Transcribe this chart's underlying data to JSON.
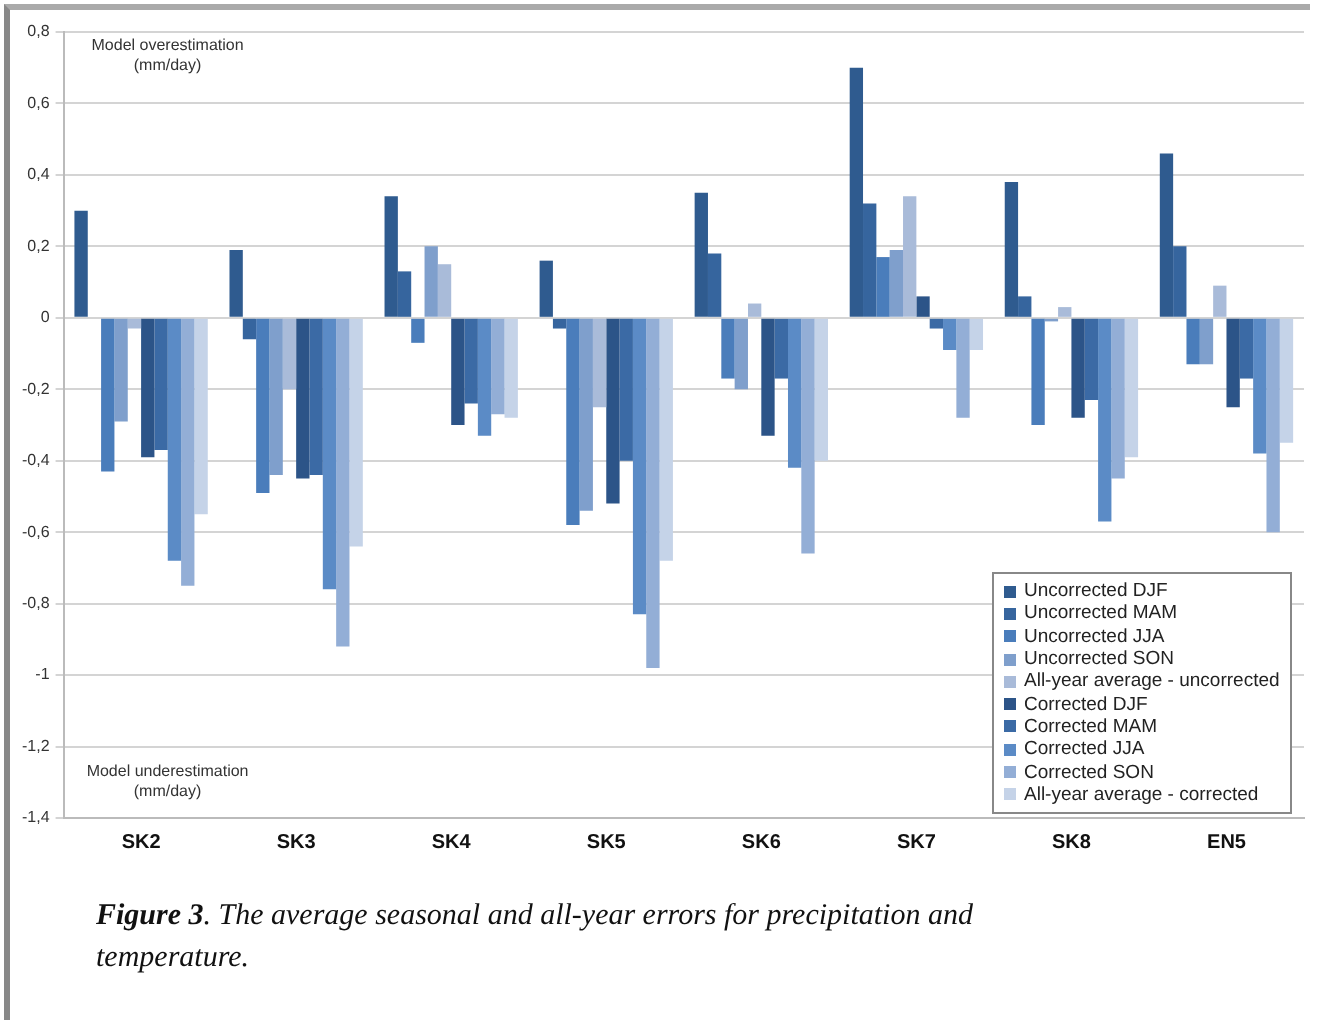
{
  "chart_data": {
    "type": "bar",
    "categories": [
      "SK2",
      "SK3",
      "SK4",
      "SK5",
      "SK6",
      "SK7",
      "SK8",
      "EN5"
    ],
    "series": [
      {
        "name": "Uncorrected DJF",
        "color": "#2f5b8f",
        "values": [
          0.3,
          0.19,
          0.34,
          0.16,
          0.35,
          0.7,
          0.38,
          0.46
        ]
      },
      {
        "name": "Uncorrected MAM",
        "color": "#36659e",
        "values": [
          0,
          -0.06,
          0.13,
          -0.03,
          0.18,
          0.32,
          0.06,
          0.2
        ]
      },
      {
        "name": "Uncorrected JJA",
        "color": "#4a7dbb",
        "values": [
          -0.43,
          -0.49,
          -0.07,
          -0.58,
          -0.17,
          0.17,
          -0.3,
          -0.13
        ]
      },
      {
        "name": "Uncorrected SON",
        "color": "#7f9fcc",
        "values": [
          -0.29,
          -0.44,
          0.2,
          -0.54,
          -0.2,
          0.19,
          -0.01,
          -0.13
        ]
      },
      {
        "name": "All-year average - uncorrected",
        "color": "#a9bbd9",
        "values": [
          -0.03,
          -0.2,
          0.15,
          -0.25,
          0.04,
          0.34,
          0.03,
          0.09
        ]
      },
      {
        "name": "Corrected DJF",
        "color": "#2c5488",
        "values": [
          -0.39,
          -0.45,
          -0.3,
          -0.52,
          -0.33,
          0.06,
          -0.28,
          -0.25
        ]
      },
      {
        "name": "Corrected MAM",
        "color": "#3b6aa5",
        "values": [
          -0.37,
          -0.44,
          -0.24,
          -0.4,
          -0.17,
          -0.03,
          -0.23,
          -0.17
        ]
      },
      {
        "name": "Corrected JJA",
        "color": "#5b8bc6",
        "values": [
          -0.68,
          -0.76,
          -0.33,
          -0.83,
          -0.42,
          -0.09,
          -0.57,
          -0.38
        ]
      },
      {
        "name": "Corrected SON",
        "color": "#93aed6",
        "values": [
          -0.75,
          -0.92,
          -0.27,
          -0.98,
          -0.66,
          -0.28,
          -0.45,
          -0.6
        ]
      },
      {
        "name": "All-year average - corrected",
        "color": "#c5d3e8",
        "values": [
          -0.55,
          -0.64,
          -0.28,
          -0.68,
          -0.4,
          -0.09,
          -0.39,
          -0.35
        ]
      }
    ],
    "ylim": [
      -1.4,
      0.8
    ],
    "yticks": [
      {
        "value": 0.8,
        "label": "0,8"
      },
      {
        "value": 0.6,
        "label": "0,6"
      },
      {
        "value": 0.4,
        "label": "0,4"
      },
      {
        "value": 0.2,
        "label": "0,2"
      },
      0,
      {
        "value": -0.2,
        "label": "-0,2"
      },
      {
        "value": -0.4,
        "label": "-0,4"
      },
      {
        "value": -0.6,
        "label": "-0,6"
      },
      {
        "value": -0.8,
        "label": "-0,8"
      },
      -1,
      {
        "value": -1.2,
        "label": "-1,2"
      },
      {
        "value": -1.4,
        "label": "-1,4"
      }
    ],
    "grid": "y",
    "legend": "bottom right",
    "annotations": [
      "Model overestimation (mm/day)",
      "Model underestimation (mm/day)",
      "Figure 3. The average seasonal and all-year errors for precipitation and temperature."
    ]
  }
}
